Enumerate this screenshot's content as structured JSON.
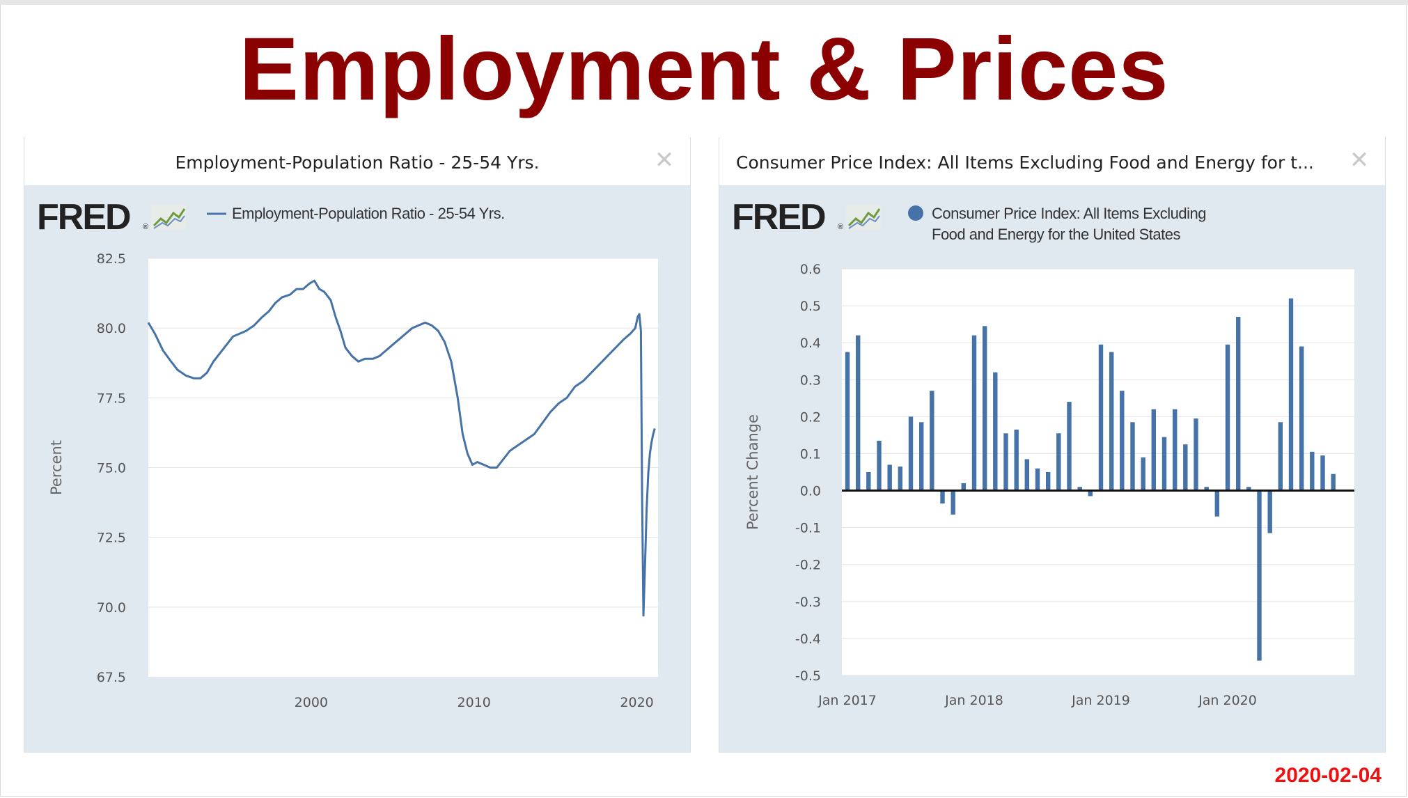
{
  "title": "Employment & Prices",
  "date_stamp": "2020-02-04",
  "panels": {
    "left": {
      "title": "Employment-Population Ratio - 25-54 Yrs."
    },
    "right": {
      "title": "Consumer Price Index: All Items Excluding Food and Energy for t..."
    }
  },
  "brand": {
    "text": "FRED",
    "mark": "®",
    "icon": "chart-trend-icon"
  },
  "colors": {
    "title": "#8b0000",
    "series": "#4572a7",
    "date": "#ee1111",
    "chart_bg": "#e1e9f0"
  },
  "chart_data": [
    {
      "type": "line",
      "legend": [
        "Employment-Population Ratio - 25-54 Yrs."
      ],
      "legend_position": "top-left",
      "ylabel": "Percent",
      "xlabel": "",
      "ylim": [
        67.5,
        82.5
      ],
      "xlim": [
        1990,
        2021.3
      ],
      "yticks": [
        67.5,
        70.0,
        72.5,
        75.0,
        77.5,
        80.0,
        82.5
      ],
      "ytick_labels": [
        "67.5",
        "70.0",
        "72.5",
        "75.0",
        "77.5",
        "80.0",
        "82.5"
      ],
      "xticks": [
        2000,
        2010,
        2020
      ],
      "xtick_labels": [
        "2000",
        "2010",
        "2020"
      ],
      "grid": "horizontal",
      "series": [
        {
          "name": "Employment-Population Ratio - 25-54 Yrs.",
          "x": [
            1990.0,
            1990.4,
            1990.9,
            1991.4,
            1991.8,
            1992.3,
            1992.8,
            1993.2,
            1993.6,
            1994.0,
            1994.4,
            1994.8,
            1995.2,
            1995.6,
            1996.0,
            1996.5,
            1997.0,
            1997.4,
            1997.8,
            1998.2,
            1998.7,
            1999.1,
            1999.5,
            1999.9,
            2000.2,
            2000.5,
            2000.8,
            2001.2,
            2001.5,
            2001.8,
            2002.1,
            2002.5,
            2002.9,
            2003.3,
            2003.8,
            2004.2,
            2004.6,
            2005.0,
            2005.4,
            2005.8,
            2006.2,
            2006.6,
            2007.0,
            2007.4,
            2007.8,
            2008.2,
            2008.6,
            2009.0,
            2009.3,
            2009.6,
            2009.9,
            2010.2,
            2010.6,
            2011.0,
            2011.4,
            2011.8,
            2012.2,
            2012.7,
            2013.2,
            2013.7,
            2014.2,
            2014.7,
            2015.2,
            2015.7,
            2016.2,
            2016.7,
            2017.2,
            2017.7,
            2018.2,
            2018.7,
            2019.2,
            2019.6,
            2019.9,
            2020.05,
            2020.15,
            2020.25,
            2020.32,
            2020.4,
            2020.5,
            2020.6,
            2020.7,
            2020.8,
            2020.9,
            2021.0,
            2021.1
          ],
          "values": [
            80.2,
            79.8,
            79.2,
            78.8,
            78.5,
            78.3,
            78.2,
            78.2,
            78.4,
            78.8,
            79.1,
            79.4,
            79.7,
            79.8,
            79.9,
            80.1,
            80.4,
            80.6,
            80.9,
            81.1,
            81.2,
            81.4,
            81.4,
            81.6,
            81.7,
            81.4,
            81.3,
            81.0,
            80.4,
            79.9,
            79.3,
            79.0,
            78.8,
            78.9,
            78.9,
            79.0,
            79.2,
            79.4,
            79.6,
            79.8,
            80.0,
            80.1,
            80.2,
            80.1,
            79.9,
            79.5,
            78.8,
            77.5,
            76.2,
            75.5,
            75.1,
            75.2,
            75.1,
            75.0,
            75.0,
            75.3,
            75.6,
            75.8,
            76.0,
            76.2,
            76.6,
            77.0,
            77.3,
            77.5,
            77.9,
            78.1,
            78.4,
            78.7,
            79.0,
            79.3,
            79.6,
            79.8,
            80.0,
            80.4,
            80.5,
            79.9,
            74.0,
            69.7,
            71.5,
            73.5,
            74.8,
            75.5,
            75.9,
            76.2,
            76.4
          ]
        }
      ]
    },
    {
      "type": "bar",
      "legend": [
        "Consumer Price Index: All Items Excluding",
        "Food and Energy for the United States"
      ],
      "legend_position": "top-left",
      "ylabel": "Percent Change",
      "xlabel": "",
      "ylim": [
        -0.5,
        0.6
      ],
      "yticks": [
        -0.5,
        -0.4,
        -0.3,
        -0.2,
        -0.1,
        0.0,
        0.1,
        0.2,
        0.3,
        0.4,
        0.5,
        0.6
      ],
      "ytick_labels": [
        "-0.5",
        "-0.4",
        "-0.3",
        "-0.2",
        "-0.1",
        "0.0",
        "0.1",
        "0.2",
        "0.3",
        "0.4",
        "0.5",
        "0.6"
      ],
      "xtick_labels": [
        {
          "label": "Jan 2017",
          "index": 0
        },
        {
          "label": "Jan 2018",
          "index": 12
        },
        {
          "label": "Jan 2019",
          "index": 24
        },
        {
          "label": "Jan 2020",
          "index": 36
        }
      ],
      "grid": "horizontal",
      "series": [
        {
          "name": "Consumer Price Index: All Items Excluding Food and Energy for the United States",
          "categories": [
            "2017-01",
            "2017-02",
            "2017-03",
            "2017-04",
            "2017-05",
            "2017-06",
            "2017-07",
            "2017-08",
            "2017-09",
            "2017-10",
            "2017-11",
            "2017-12",
            "2018-01",
            "2018-02",
            "2018-03",
            "2018-04",
            "2018-05",
            "2018-06",
            "2018-07",
            "2018-08",
            "2018-09",
            "2018-10",
            "2018-11",
            "2018-12",
            "2019-01",
            "2019-02",
            "2019-03",
            "2019-04",
            "2019-05",
            "2019-06",
            "2019-07",
            "2019-08",
            "2019-09",
            "2019-10",
            "2019-11",
            "2019-12",
            "2020-01",
            "2020-02",
            "2020-03",
            "2020-04",
            "2020-05",
            "2020-06",
            "2020-07",
            "2020-08",
            "2020-09",
            "2020-10",
            "2020-11",
            "2020-12"
          ],
          "values": [
            0.375,
            0.42,
            0.05,
            0.135,
            0.07,
            0.065,
            0.2,
            0.185,
            0.27,
            -0.035,
            -0.065,
            0.02,
            0.42,
            0.445,
            0.32,
            0.155,
            0.165,
            0.085,
            0.06,
            0.05,
            0.155,
            0.24,
            0.01,
            -0.015,
            0.395,
            0.375,
            0.27,
            0.185,
            0.09,
            0.22,
            0.145,
            0.22,
            0.125,
            0.195,
            0.01,
            -0.07,
            0.395,
            0.47,
            0.01,
            -0.46,
            -0.115,
            0.185,
            0.52,
            0.39,
            0.105,
            0.095,
            0.045,
            null
          ]
        }
      ]
    }
  ]
}
